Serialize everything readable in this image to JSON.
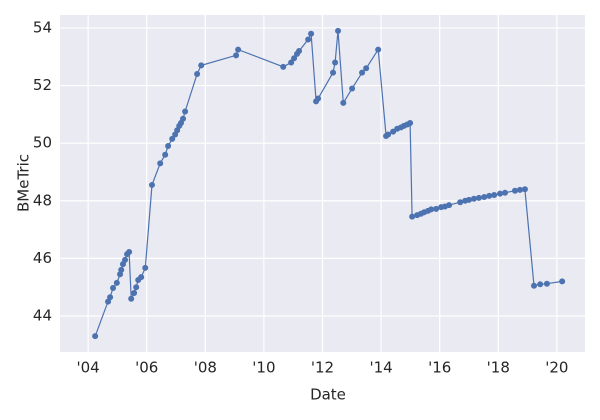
{
  "chart_data": {
    "type": "line",
    "x_label": "Date",
    "y_label": "BMeTric",
    "x": [
      2004.24,
      2004.68,
      2004.75,
      2004.85,
      2004.98,
      2005.09,
      2005.13,
      2005.19,
      2005.26,
      2005.33,
      2005.4,
      2005.47,
      2005.57,
      2005.64,
      2005.71,
      2005.81,
      2005.95,
      2006.18,
      2006.46,
      2006.63,
      2006.73,
      2006.87,
      2006.97,
      2007.04,
      2007.11,
      2007.17,
      2007.24,
      2007.31,
      2007.72,
      2007.86,
      2009.05,
      2009.12,
      2010.66,
      2010.93,
      2011.03,
      2011.13,
      2011.2,
      2011.51,
      2011.61,
      2011.78,
      2011.85,
      2012.36,
      2012.43,
      2012.53,
      2012.71,
      2013.01,
      2013.35,
      2013.49,
      2013.9,
      2014.17,
      2014.24,
      2014.41,
      2014.55,
      2014.68,
      2014.78,
      2014.89,
      2014.99,
      2015.06,
      2015.23,
      2015.36,
      2015.47,
      2015.6,
      2015.71,
      2015.88,
      2016.05,
      2016.18,
      2016.32,
      2016.7,
      2016.87,
      2017.0,
      2017.17,
      2017.34,
      2017.52,
      2017.69,
      2017.86,
      2018.06,
      2018.23,
      2018.57,
      2018.74,
      2018.91,
      2019.22,
      2019.43,
      2019.66,
      2020.18
    ],
    "series": [
      {
        "color": "#4c72b0",
        "values": [
          43.3,
          44.5,
          44.65,
          44.97,
          45.15,
          45.45,
          45.6,
          45.8,
          45.95,
          46.15,
          46.22,
          44.6,
          44.8,
          45.0,
          45.25,
          45.35,
          45.67,
          48.55,
          49.3,
          49.6,
          49.9,
          50.15,
          50.3,
          50.45,
          50.6,
          50.7,
          50.85,
          51.1,
          52.4,
          52.7,
          53.05,
          53.25,
          52.65,
          52.8,
          52.95,
          53.1,
          53.2,
          53.6,
          53.8,
          51.45,
          51.55,
          52.45,
          52.8,
          53.9,
          51.4,
          51.9,
          52.45,
          52.6,
          53.25,
          50.25,
          50.3,
          50.4,
          50.5,
          50.55,
          50.6,
          50.65,
          50.7,
          47.45,
          47.5,
          47.55,
          47.6,
          47.65,
          47.7,
          47.72,
          47.78,
          47.8,
          47.85,
          47.95,
          48.0,
          48.03,
          48.07,
          48.1,
          48.13,
          48.17,
          48.2,
          48.25,
          48.28,
          48.35,
          48.38,
          48.4,
          45.05,
          45.1,
          45.12,
          45.2
        ]
      }
    ],
    "xlim": [
      2003.04,
      2020.96
    ],
    "ylim": [
      42.75,
      54.45
    ],
    "xticks": [
      {
        "value": 2004,
        "label": "'04"
      },
      {
        "value": 2006,
        "label": "'06"
      },
      {
        "value": 2008,
        "label": "'08"
      },
      {
        "value": 2010,
        "label": "'10"
      },
      {
        "value": 2012,
        "label": "'12"
      },
      {
        "value": 2014,
        "label": "'14"
      },
      {
        "value": 2016,
        "label": "'16"
      },
      {
        "value": 2018,
        "label": "'18"
      },
      {
        "value": 2020,
        "label": "'20"
      }
    ],
    "yticks": [
      44,
      46,
      48,
      50,
      52,
      54
    ],
    "grid": true
  }
}
